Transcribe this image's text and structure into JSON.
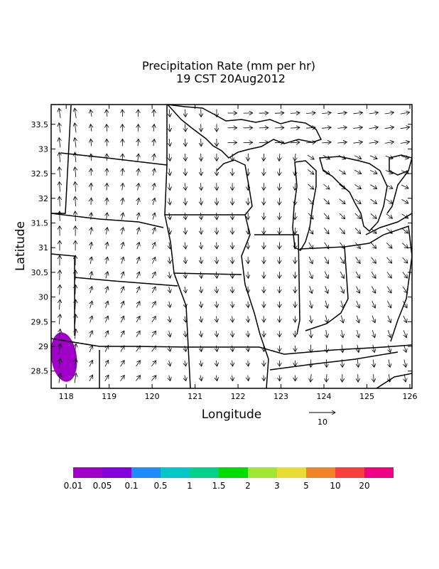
{
  "title_line1": "Precipitation Rate (mm per hr)",
  "title_line2": "19 CST 20Aug2012",
  "map": {
    "xlabel": "Longitude",
    "ylabel": "Latitude",
    "xlim": [
      117.65,
      126.05
    ],
    "ylim": [
      28.15,
      33.9
    ],
    "x_ticks": [
      "118",
      "119",
      "120",
      "121",
      "122",
      "123",
      "124",
      "125",
      "126"
    ],
    "y_ticks": [
      "28.5",
      "29",
      "29.5",
      "30",
      "30.5",
      "31",
      "31.5",
      "32",
      "32.5",
      "33",
      "33.5"
    ],
    "vector_reference": "10",
    "vector_field_description": "wind vectors, predominantly southward/southeastward over central plains, northwestward in west, eastward over Great Lakes",
    "precip_region": {
      "lon_center": 117.85,
      "lat_center": 28.85,
      "color": "#a000c8"
    }
  },
  "colorbar": {
    "colors": [
      "#a000c8",
      "#8200dc",
      "#1e8cff",
      "#00c8c8",
      "#00d28c",
      "#00dc00",
      "#a0e632",
      "#e6dc32",
      "#f08228",
      "#fa3c3c",
      "#f00082"
    ],
    "labels": [
      "0.01",
      "0.05",
      "0.1",
      "0.5",
      "1",
      "1.5",
      "2",
      "3",
      "5",
      "10",
      "20"
    ]
  }
}
